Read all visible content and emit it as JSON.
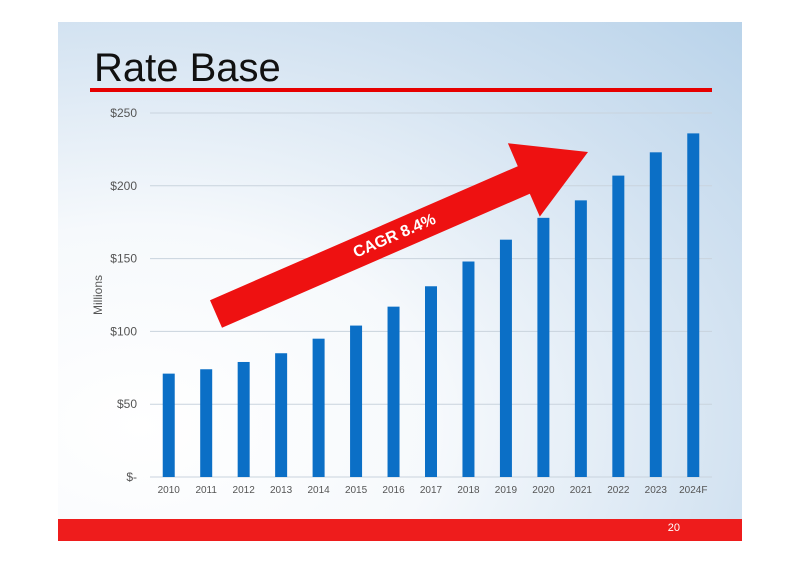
{
  "slide": {
    "title": "Rate Base",
    "page_number": "20"
  },
  "chart_data": {
    "type": "bar",
    "title": "",
    "ylabel": "Millions",
    "xlabel": "",
    "categories": [
      "2010",
      "2011",
      "2012",
      "2013",
      "2014",
      "2015",
      "2016",
      "2017",
      "2018",
      "2019",
      "2020",
      "2021",
      "2022",
      "2023",
      "2024F"
    ],
    "values": [
      71,
      74,
      79,
      85,
      95,
      104,
      117,
      131,
      148,
      163,
      178,
      190,
      207,
      223,
      236
    ],
    "ylim": [
      0,
      250
    ],
    "yticks": [
      0,
      50,
      100,
      150,
      200,
      250
    ],
    "ytick_labels": [
      "$-",
      "$50",
      "$100",
      "$150",
      "$200",
      "$250"
    ],
    "grid": true,
    "bar_color": "#0b6fc6",
    "annotation": {
      "text": "CAGR 8.4%",
      "color": "#ee1111"
    }
  }
}
